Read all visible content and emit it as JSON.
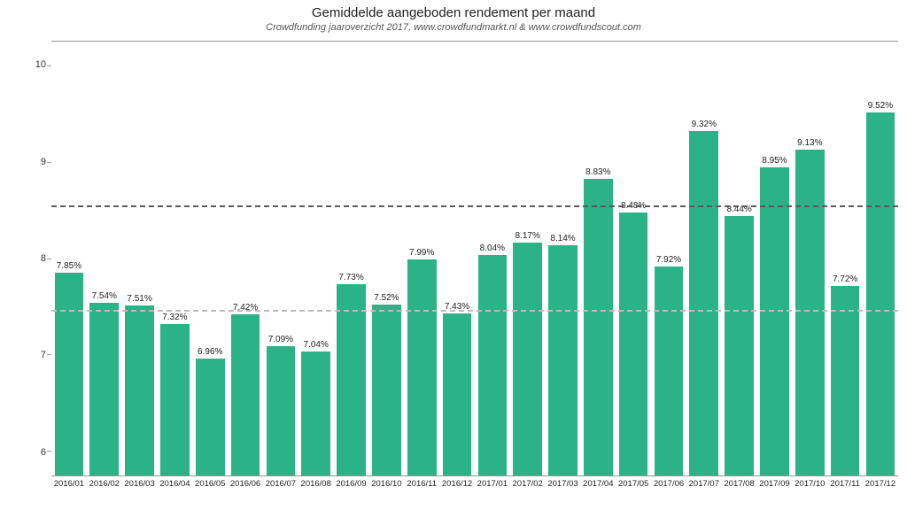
{
  "chart": {
    "type": "bar",
    "title": "Gemiddelde aangeboden rendement per maand",
    "subtitle": "Crowdfunding jaaroverzicht 2017, www.crowdfundmarkt.nl & www.crowdfundscout.com",
    "title_fontsize": 15,
    "subtitle_fontsize": 11,
    "background_color": "#ffffff",
    "bar_color": "#2bb387",
    "bar_width": 0.82,
    "axis_color": "#969696",
    "text_color": "#222222",
    "ymin": 5.75,
    "ymax": 10.25,
    "yticks": [
      6,
      7,
      8,
      9,
      10
    ],
    "reference_lines": [
      {
        "value": 7.47,
        "color": "#bcbcbc",
        "dash": "10,8",
        "width": 2
      },
      {
        "value": 8.55,
        "color": "#5a5a5a",
        "dash": "10,8",
        "width": 2
      }
    ],
    "categories": [
      "2016/01",
      "2016/02",
      "2016/03",
      "2016/04",
      "2016/05",
      "2016/06",
      "2016/07",
      "2016/08",
      "2016/09",
      "2016/10",
      "2016/11",
      "2016/12",
      "2017/01",
      "2017/02",
      "2017/03",
      "2017/04",
      "2017/05",
      "2017/06",
      "2017/07",
      "2017/08",
      "2017/09",
      "2017/10",
      "2017/11",
      "2017/12"
    ],
    "values": [
      7.85,
      7.54,
      7.51,
      7.32,
      6.96,
      7.42,
      7.09,
      7.04,
      7.73,
      7.52,
      7.99,
      7.43,
      8.04,
      8.17,
      8.14,
      8.83,
      8.48,
      7.92,
      9.32,
      8.44,
      8.95,
      9.13,
      7.72,
      9.52
    ],
    "value_labels": [
      "7.85%",
      "7.54%",
      "7.51%",
      "7.32%",
      "6.96%",
      "7.42%",
      "7.09%",
      "7.04%",
      "7.73%",
      "7.52%",
      "7.99%",
      "7.43%",
      "8.04%",
      "8.17%",
      "8.14%",
      "8.83%",
      "8.48%",
      "7.92%",
      "9.32%",
      "8.44%",
      "8.95%",
      "9.13%",
      "7.72%",
      "9.52%"
    ],
    "label_fontsize": 10,
    "xlabel_fontsize": 9.5
  }
}
